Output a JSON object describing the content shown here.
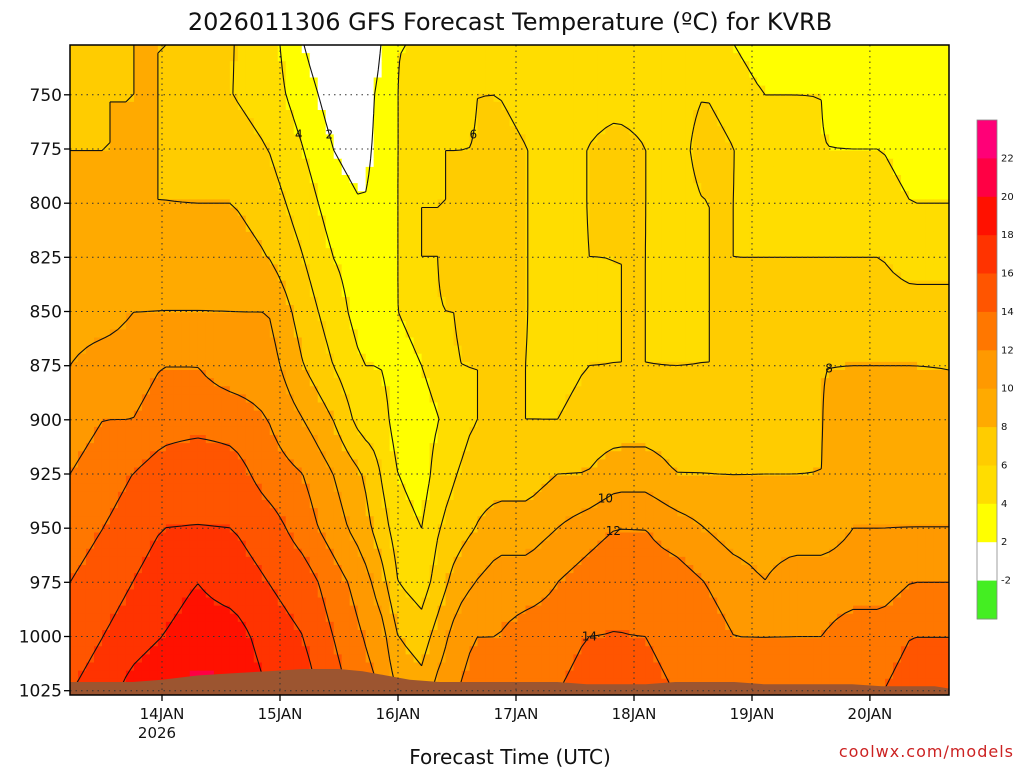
{
  "chart_data": {
    "type": "heatmap",
    "title": "2026011306 GFS Forecast Temperature (ºC) for KVRB",
    "xlabel": "Forecast Time (UTC)",
    "ylabel": "",
    "credit": "coolwx.com/models",
    "y_axis": {
      "unit": "hPa",
      "ticks": [
        750,
        775,
        800,
        825,
        850,
        875,
        900,
        925,
        950,
        975,
        1000,
        1025
      ],
      "range": [
        727,
        1027
      ],
      "inverted": true
    },
    "x_axis": {
      "unit": "days since 14JAN",
      "tick_labels": [
        "14JAN",
        "15JAN",
        "16JAN",
        "17JAN",
        "18JAN",
        "19JAN",
        "20JAN"
      ],
      "year_label": "2026",
      "range": [
        -0.78,
        6.67
      ],
      "tick_values": [
        0,
        1,
        2,
        3,
        4,
        5,
        6
      ]
    },
    "grid": true,
    "colorbar": {
      "position": "right",
      "labels": [
        "-2",
        "2",
        "4",
        "6",
        "8",
        "10",
        "12",
        "14",
        "16",
        "18",
        "20",
        "22"
      ],
      "bins": [
        {
          "lo": -4,
          "hi": -2,
          "color": "#44ee22"
        },
        {
          "lo": -2,
          "hi": 2,
          "color": "#ffffff"
        },
        {
          "lo": 2,
          "hi": 4,
          "color": "#ffff00"
        },
        {
          "lo": 4,
          "hi": 6,
          "color": "#ffdd00"
        },
        {
          "lo": 6,
          "hi": 8,
          "color": "#ffcc00"
        },
        {
          "lo": 8,
          "hi": 10,
          "color": "#ffaa00"
        },
        {
          "lo": 10,
          "hi": 12,
          "color": "#ff9900"
        },
        {
          "lo": 12,
          "hi": 14,
          "color": "#ff7700"
        },
        {
          "lo": 14,
          "hi": 16,
          "color": "#ff5500"
        },
        {
          "lo": 16,
          "hi": 18,
          "color": "#ff3300"
        },
        {
          "lo": 18,
          "hi": 20,
          "color": "#ff1100"
        },
        {
          "lo": 20,
          "hi": 22,
          "color": "#ff0044"
        },
        {
          "lo": 22,
          "hi": 24,
          "color": "#ff0077"
        }
      ]
    },
    "ground_color": "#9c5530",
    "ground_top_hpa": [
      1021,
      1021,
      1021,
      1020,
      1018,
      1017,
      1016,
      1015,
      1015,
      1016,
      1018,
      1020,
      1021,
      1021,
      1021,
      1021,
      1021,
      1022,
      1022,
      1022,
      1021,
      1021,
      1021,
      1022,
      1022,
      1022,
      1022,
      1023,
      1023,
      1023,
      1023,
      1024
    ],
    "ground_x": [
      -0.78,
      -0.5,
      -0.25,
      0.0,
      0.3,
      0.6,
      0.9,
      1.2,
      1.5,
      1.7,
      1.9,
      2.1,
      2.35,
      2.6,
      2.85,
      3.1,
      3.35,
      3.6,
      3.85,
      4.1,
      4.35,
      4.6,
      4.85,
      5.1,
      5.35,
      5.6,
      5.85,
      6.1,
      6.3,
      6.45,
      6.55,
      6.67
    ],
    "temperature_grid": {
      "x": [
        -0.78,
        -0.5,
        -0.25,
        0.0,
        0.3,
        0.6,
        0.9,
        1.2,
        1.45,
        1.7,
        1.85,
        2.0,
        2.2,
        2.35,
        2.5,
        2.65,
        2.85,
        3.1,
        3.35,
        3.6,
        3.85,
        4.1,
        4.35,
        4.6,
        4.85,
        5.1,
        5.35,
        5.6,
        5.85,
        6.1,
        6.35,
        6.67
      ],
      "p": [
        727,
        750,
        775,
        800,
        825,
        850,
        875,
        900,
        925,
        950,
        975,
        1000,
        1027
      ],
      "values": [
        [
          7,
          7,
          8,
          8,
          8,
          6,
          5,
          2,
          0,
          -2,
          2,
          4,
          4,
          4,
          5,
          5,
          5,
          5,
          5,
          4,
          4,
          4,
          5,
          5,
          4,
          3,
          3,
          3,
          3,
          3,
          3,
          3
        ],
        [
          7,
          8,
          8,
          8,
          7,
          6,
          5,
          3,
          1,
          0,
          3,
          4,
          5,
          5,
          5,
          6,
          6,
          5,
          5,
          5,
          5,
          5,
          5,
          6,
          5,
          4,
          4,
          4,
          3,
          3,
          3,
          3
        ],
        [
          8,
          8,
          8,
          8,
          7,
          7,
          6,
          4,
          2,
          1,
          3,
          4,
          5,
          6,
          6,
          6,
          7,
          6,
          5,
          6,
          7,
          6,
          5,
          7,
          6,
          5,
          5,
          4,
          4,
          4,
          3,
          3
        ],
        [
          8,
          8,
          8,
          8,
          8,
          8,
          7,
          5,
          3,
          2,
          3,
          4,
          6,
          6,
          6,
          7,
          7,
          6,
          5,
          6,
          7,
          6,
          5,
          6,
          6,
          5,
          5,
          5,
          5,
          5,
          4,
          4
        ],
        [
          8,
          8,
          8,
          9,
          9,
          9,
          8,
          6,
          4,
          3,
          3,
          4,
          6,
          6,
          7,
          7,
          7,
          6,
          5,
          6,
          6,
          6,
          5,
          6,
          6,
          6,
          6,
          6,
          6,
          6,
          5,
          5
        ],
        [
          9,
          9,
          10,
          10,
          10,
          10,
          10,
          7,
          5,
          3,
          3,
          4,
          5,
          6,
          6,
          7,
          7,
          6,
          5,
          5,
          6,
          6,
          5,
          6,
          6,
          7,
          7,
          7,
          7,
          7,
          7,
          7
        ],
        [
          10,
          11,
          11,
          12,
          12,
          11,
          11,
          8,
          6,
          4,
          4,
          3,
          4,
          5,
          6,
          6,
          6,
          6,
          5,
          6,
          6,
          6,
          6,
          6,
          6,
          7,
          7,
          8,
          8,
          8,
          8,
          8
        ],
        [
          11,
          12,
          12,
          13,
          13,
          13,
          12,
          10,
          8,
          5,
          5,
          3,
          3,
          4,
          5,
          6,
          6,
          6,
          6,
          7,
          7,
          7,
          7,
          7,
          6,
          7,
          7,
          8,
          9,
          9,
          9,
          8
        ],
        [
          12,
          13,
          14,
          15,
          16,
          15,
          13,
          12,
          10,
          8,
          6,
          4,
          3,
          5,
          6,
          7,
          7,
          7,
          8,
          8,
          9,
          9,
          8,
          8,
          8,
          8,
          8,
          8,
          9,
          9,
          9,
          9
        ],
        [
          13,
          14,
          15,
          16,
          16,
          16,
          15,
          13,
          11,
          9,
          7,
          5,
          4,
          6,
          7,
          8,
          9,
          9,
          10,
          11,
          12,
          12,
          11,
          10,
          9,
          9,
          9,
          9,
          10,
          10,
          10,
          10
        ],
        [
          14,
          15,
          16,
          17,
          18,
          17,
          16,
          15,
          13,
          11,
          9,
          6,
          5,
          7,
          9,
          10,
          11,
          11,
          12,
          13,
          14,
          13,
          13,
          12,
          11,
          10,
          11,
          11,
          11,
          11,
          12,
          12
        ],
        [
          15,
          16,
          17,
          18,
          19,
          19,
          17,
          16,
          14,
          12,
          11,
          8,
          7,
          9,
          11,
          12,
          12,
          13,
          13,
          14,
          14,
          14,
          13,
          13,
          12,
          12,
          12,
          12,
          13,
          13,
          14,
          14
        ],
        [
          16,
          17,
          19,
          20,
          21,
          20,
          18,
          17,
          15,
          13,
          12,
          10,
          9,
          11,
          12,
          13,
          13,
          14,
          14,
          15,
          16,
          15,
          14,
          14,
          13,
          13,
          13,
          13,
          14,
          14,
          15,
          15
        ]
      ]
    },
    "contour_levels": [
      2,
      4,
      6,
      8,
      10,
      12,
      14,
      16,
      18
    ],
    "freezing_contour_color": "#aa0077"
  }
}
